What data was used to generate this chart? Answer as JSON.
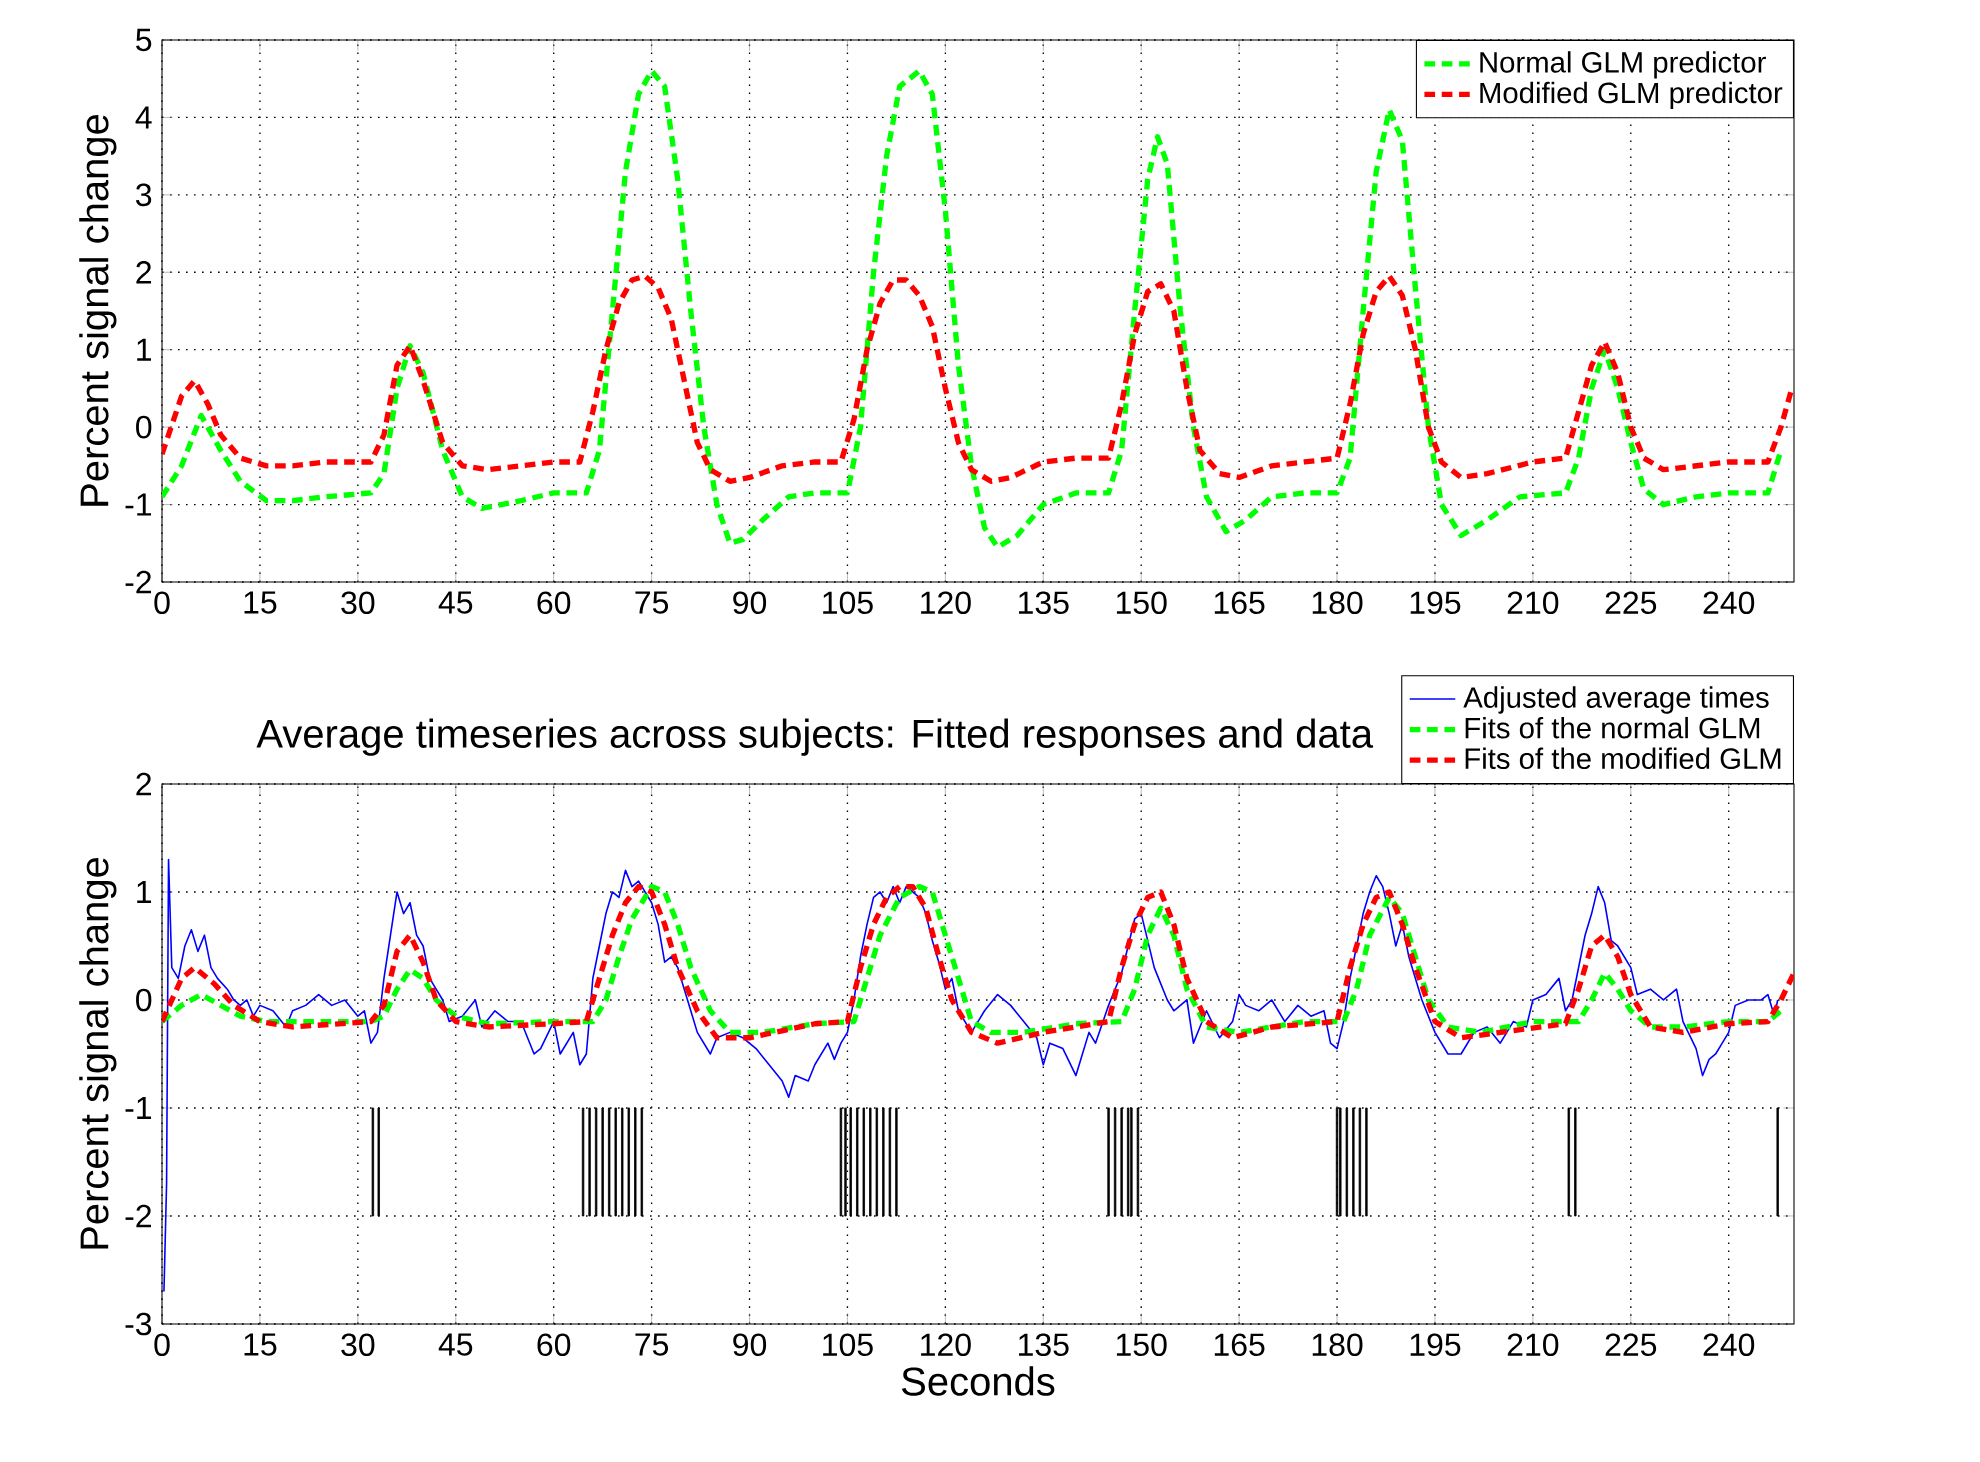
{
  "chart_data": [
    {
      "type": "line",
      "ylabel": "Percent signal change",
      "xlim": [
        0,
        250
      ],
      "ylim": [
        -2,
        5
      ],
      "xticks": [
        0,
        15,
        30,
        45,
        60,
        75,
        90,
        105,
        120,
        135,
        150,
        165,
        180,
        195,
        210,
        225,
        240
      ],
      "yticks": [
        -2,
        -1,
        0,
        1,
        2,
        3,
        4,
        5
      ],
      "grid": true,
      "legend": "top right",
      "series": [
        {
          "name": "Normal GLM predictor",
          "color": "#00ff00",
          "line_style": "dashed",
          "x": [
            0,
            3,
            6,
            9,
            12,
            16,
            20,
            25,
            32,
            34,
            36,
            38,
            40,
            43,
            46,
            49,
            55,
            60,
            65,
            67,
            69,
            71,
            73,
            75,
            77,
            79,
            81,
            83,
            85,
            87,
            89,
            92,
            96,
            100,
            105,
            107,
            109,
            111,
            113,
            116,
            118,
            120,
            122,
            124,
            126,
            128,
            131,
            135,
            140,
            145,
            147,
            149,
            151,
            152.5,
            154,
            156,
            158,
            160,
            163,
            166,
            170,
            175,
            180,
            182,
            184,
            186,
            188,
            190,
            192,
            194,
            196,
            199,
            203,
            208,
            215,
            217,
            219,
            221,
            223,
            225,
            227,
            230,
            235,
            240,
            246,
            248
          ],
          "values": [
            -0.9,
            -0.5,
            0.15,
            -0.3,
            -0.7,
            -0.95,
            -0.95,
            -0.9,
            -0.85,
            -0.6,
            0.5,
            1.05,
            0.7,
            -0.3,
            -0.9,
            -1.05,
            -0.95,
            -0.85,
            -0.85,
            -0.3,
            1.5,
            3.3,
            4.3,
            4.6,
            4.4,
            3.2,
            1.5,
            0.0,
            -1.0,
            -1.5,
            -1.45,
            -1.2,
            -0.9,
            -0.85,
            -0.85,
            0.0,
            2.0,
            3.5,
            4.4,
            4.6,
            4.3,
            2.8,
            0.8,
            -0.5,
            -1.3,
            -1.55,
            -1.4,
            -1.0,
            -0.85,
            -0.85,
            -0.3,
            1.5,
            3.2,
            3.75,
            3.4,
            1.5,
            0.0,
            -0.9,
            -1.35,
            -1.2,
            -0.9,
            -0.85,
            -0.85,
            -0.4,
            1.5,
            3.3,
            4.1,
            3.7,
            1.8,
            0.0,
            -1.0,
            -1.4,
            -1.2,
            -0.9,
            -0.85,
            -0.4,
            0.5,
            1.0,
            0.5,
            -0.2,
            -0.8,
            -1.0,
            -0.9,
            -0.85,
            -0.85,
            -0.3
          ]
        },
        {
          "name": "Modified GLM predictor",
          "color": "#ff0000",
          "line_style": "dashed",
          "x": [
            0,
            3,
            5,
            7,
            9,
            12,
            16,
            20,
            25,
            32,
            34,
            36,
            38,
            40,
            43,
            46,
            50,
            55,
            60,
            64,
            66,
            68,
            70,
            72,
            74,
            76,
            78,
            80,
            82,
            84,
            87,
            90,
            95,
            100,
            104,
            106,
            108,
            110,
            112,
            114,
            116,
            118,
            120,
            122,
            124,
            127,
            130,
            135,
            140,
            145,
            147,
            149,
            151,
            153,
            155,
            157,
            159,
            162,
            165,
            170,
            175,
            180,
            182,
            184,
            186,
            188,
            190,
            192,
            194,
            196,
            199,
            203,
            210,
            215,
            217,
            219,
            221,
            223,
            225,
            227,
            230,
            235,
            240,
            246,
            248,
            249.5
          ],
          "values": [
            -0.35,
            0.4,
            0.6,
            0.3,
            -0.1,
            -0.4,
            -0.5,
            -0.5,
            -0.45,
            -0.45,
            -0.1,
            0.8,
            1.05,
            0.6,
            -0.2,
            -0.5,
            -0.55,
            -0.5,
            -0.45,
            -0.45,
            0.2,
            1.0,
            1.6,
            1.9,
            1.95,
            1.8,
            1.4,
            0.6,
            -0.2,
            -0.55,
            -0.7,
            -0.65,
            -0.5,
            -0.45,
            -0.45,
            0.1,
            1.0,
            1.6,
            1.9,
            1.9,
            1.7,
            1.3,
            0.5,
            -0.2,
            -0.55,
            -0.7,
            -0.65,
            -0.45,
            -0.4,
            -0.4,
            0.3,
            1.2,
            1.75,
            1.85,
            1.5,
            0.5,
            -0.3,
            -0.6,
            -0.65,
            -0.5,
            -0.45,
            -0.4,
            0.3,
            1.2,
            1.75,
            1.95,
            1.7,
            1.0,
            0.0,
            -0.45,
            -0.65,
            -0.6,
            -0.45,
            -0.4,
            0.2,
            0.8,
            1.1,
            0.7,
            0.0,
            -0.4,
            -0.55,
            -0.5,
            -0.45,
            -0.45,
            0.0,
            0.45
          ]
        }
      ]
    },
    {
      "type": "line",
      "title": "Average timeseries across subjects: Fitted responses and data",
      "xlabel": "Seconds",
      "ylabel": "Percent signal change",
      "xlim": [
        0,
        250
      ],
      "ylim": [
        -3,
        2
      ],
      "xticks": [
        0,
        15,
        30,
        45,
        60,
        75,
        90,
        105,
        120,
        135,
        150,
        165,
        180,
        195,
        210,
        225,
        240
      ],
      "yticks": [
        -3,
        -2,
        -1,
        0,
        1,
        2
      ],
      "grid": true,
      "legend": "top right",
      "series": [
        {
          "name": "Adjusted average times",
          "color": "#0000ff",
          "line_style": "solid",
          "x": [
            0.3,
            0.7,
            1,
            1.5,
            2.5,
            3.5,
            4.5,
            5.5,
            6.5,
            7.5,
            8.5,
            10,
            11,
            12,
            13,
            14,
            15,
            17,
            19,
            20,
            22,
            24,
            26,
            28,
            30,
            31,
            32,
            33,
            34,
            35,
            36,
            37,
            38,
            39,
            40,
            41,
            43,
            44,
            46,
            48,
            49,
            51,
            53,
            55,
            57,
            58,
            60,
            61,
            63,
            64,
            65,
            66,
            67,
            68,
            69,
            70,
            71,
            72,
            73,
            74,
            75,
            76,
            77,
            78,
            79,
            80,
            81,
            82,
            84,
            85,
            87,
            89,
            91,
            93,
            95,
            96,
            97,
            99,
            100,
            102,
            103,
            104,
            105,
            106,
            107,
            108,
            109,
            110,
            111,
            112,
            113,
            114,
            115,
            116,
            117,
            118,
            119,
            120,
            121,
            122,
            124,
            126,
            128,
            130,
            132,
            134,
            135,
            136,
            138,
            140,
            142,
            143,
            145,
            147,
            148,
            149,
            150,
            151,
            152,
            154,
            155,
            156,
            157,
            158,
            159,
            160,
            162,
            164,
            165,
            166,
            168,
            170,
            172,
            174,
            176,
            178,
            179,
            180,
            181,
            182,
            183,
            184,
            185,
            186,
            187,
            188,
            189,
            190,
            191,
            192,
            193,
            195,
            197,
            199,
            201,
            203,
            205,
            207,
            209,
            210,
            212,
            214,
            215,
            216,
            218,
            219,
            220,
            221,
            222,
            223,
            225,
            226,
            228,
            230,
            232,
            233,
            235,
            236,
            237,
            238,
            239,
            240,
            241,
            243,
            245,
            246,
            247,
            247.5
          ],
          "values": [
            -2.7,
            -1.7,
            1.3,
            0.3,
            0.2,
            0.5,
            0.65,
            0.45,
            0.6,
            0.3,
            0.2,
            0.1,
            0.0,
            -0.05,
            0.0,
            -0.15,
            -0.05,
            -0.1,
            -0.25,
            -0.1,
            -0.05,
            0.05,
            -0.05,
            0.0,
            -0.15,
            -0.1,
            -0.4,
            -0.3,
            0.2,
            0.6,
            1.0,
            0.8,
            0.9,
            0.6,
            0.5,
            0.2,
            0.0,
            -0.2,
            -0.15,
            0.0,
            -0.25,
            -0.1,
            -0.2,
            -0.2,
            -0.5,
            -0.45,
            -0.2,
            -0.5,
            -0.3,
            -0.6,
            -0.5,
            0.2,
            0.5,
            0.8,
            1.0,
            0.95,
            1.2,
            1.05,
            1.1,
            1.0,
            0.9,
            0.7,
            0.35,
            0.4,
            0.3,
            0.1,
            -0.1,
            -0.3,
            -0.5,
            -0.35,
            -0.3,
            -0.35,
            -0.45,
            -0.6,
            -0.75,
            -0.9,
            -0.7,
            -0.75,
            -0.6,
            -0.4,
            -0.55,
            -0.4,
            -0.3,
            0.0,
            0.4,
            0.7,
            0.95,
            1.0,
            0.9,
            1.05,
            0.9,
            1.05,
            1.0,
            0.95,
            0.8,
            0.55,
            0.35,
            0.1,
            0.2,
            -0.1,
            -0.3,
            -0.1,
            0.05,
            -0.05,
            -0.2,
            -0.35,
            -0.6,
            -0.4,
            -0.45,
            -0.7,
            -0.3,
            -0.4,
            -0.05,
            0.25,
            0.5,
            0.75,
            0.8,
            0.55,
            0.3,
            0.0,
            -0.1,
            -0.05,
            0.0,
            -0.4,
            -0.25,
            -0.1,
            -0.35,
            -0.2,
            0.05,
            -0.05,
            -0.1,
            0.0,
            -0.2,
            -0.05,
            -0.15,
            -0.1,
            -0.4,
            -0.45,
            -0.2,
            0.2,
            0.5,
            0.8,
            1.0,
            1.15,
            1.05,
            0.8,
            0.5,
            0.7,
            0.4,
            0.2,
            0.0,
            -0.3,
            -0.5,
            -0.5,
            -0.3,
            -0.25,
            -0.4,
            -0.2,
            -0.25,
            0.0,
            0.05,
            0.2,
            -0.1,
            0.0,
            0.6,
            0.8,
            1.05,
            0.9,
            0.55,
            0.5,
            0.3,
            0.05,
            0.1,
            0.0,
            0.1,
            -0.2,
            -0.45,
            -0.7,
            -0.55,
            -0.5,
            -0.4,
            -0.3,
            -0.05,
            0.0,
            0.0,
            0.05,
            -0.15,
            0.0
          ]
        },
        {
          "name": "Fits of the normal GLM",
          "color": "#00ff00",
          "line_style": "dashed",
          "x": [
            0,
            3,
            6,
            9,
            12,
            16,
            25,
            32,
            34,
            36,
            38,
            40,
            42,
            45,
            50,
            60,
            66,
            68,
            70,
            72,
            75,
            77,
            79,
            81,
            84,
            87,
            92,
            100,
            106,
            108,
            110,
            113,
            116,
            118,
            120,
            122,
            124,
            127,
            132,
            140,
            147,
            149,
            151,
            153,
            155,
            157,
            160,
            165,
            175,
            181,
            183,
            185,
            188,
            190,
            192,
            194,
            197,
            202,
            210,
            217,
            219,
            221,
            223,
            225,
            228,
            233,
            240,
            246,
            248
          ],
          "values": [
            -0.2,
            -0.05,
            0.05,
            -0.05,
            -0.15,
            -0.2,
            -0.2,
            -0.2,
            -0.15,
            0.1,
            0.28,
            0.2,
            0.0,
            -0.15,
            -0.22,
            -0.2,
            -0.2,
            0.0,
            0.4,
            0.75,
            1.05,
            1.0,
            0.7,
            0.3,
            -0.1,
            -0.3,
            -0.3,
            -0.22,
            -0.2,
            0.2,
            0.6,
            0.95,
            1.05,
            1.0,
            0.6,
            0.2,
            -0.2,
            -0.3,
            -0.3,
            -0.22,
            -0.2,
            0.1,
            0.6,
            0.85,
            0.6,
            0.1,
            -0.25,
            -0.3,
            -0.2,
            -0.2,
            0.1,
            0.6,
            0.95,
            0.8,
            0.4,
            0.0,
            -0.25,
            -0.3,
            -0.2,
            -0.2,
            0.0,
            0.25,
            0.1,
            -0.1,
            -0.25,
            -0.25,
            -0.2,
            -0.2,
            -0.1
          ]
        },
        {
          "name": "Fits of the modified GLM",
          "color": "#ff0000",
          "line_style": "dashed",
          "x": [
            0,
            3,
            5,
            8,
            11,
            15,
            20,
            32,
            34,
            36,
            38,
            40,
            42,
            45,
            50,
            60,
            65,
            67,
            69,
            71,
            73,
            75,
            77,
            79,
            82,
            85,
            90,
            100,
            105,
            107,
            109,
            111,
            113,
            115,
            117,
            119,
            121,
            124,
            128,
            135,
            145,
            147,
            149,
            151,
            153,
            155,
            157,
            160,
            164,
            170,
            180,
            182,
            184,
            186,
            188,
            190,
            192,
            195,
            199,
            205,
            215,
            217,
            219,
            221,
            223,
            225,
            228,
            233,
            240,
            246,
            248,
            250
          ],
          "values": [
            -0.2,
            0.2,
            0.3,
            0.15,
            -0.05,
            -0.2,
            -0.25,
            -0.2,
            -0.05,
            0.45,
            0.6,
            0.35,
            0.0,
            -0.2,
            -0.25,
            -0.22,
            -0.2,
            0.2,
            0.6,
            0.9,
            1.05,
            1.0,
            0.7,
            0.3,
            -0.1,
            -0.35,
            -0.35,
            -0.22,
            -0.2,
            0.3,
            0.7,
            0.95,
            1.05,
            1.05,
            0.85,
            0.4,
            0.0,
            -0.3,
            -0.4,
            -0.3,
            -0.2,
            0.3,
            0.7,
            0.95,
            1.0,
            0.7,
            0.2,
            -0.2,
            -0.35,
            -0.25,
            -0.2,
            0.3,
            0.7,
            0.95,
            1.0,
            0.7,
            0.3,
            -0.2,
            -0.35,
            -0.3,
            -0.22,
            0.1,
            0.5,
            0.6,
            0.4,
            0.05,
            -0.25,
            -0.3,
            -0.22,
            -0.2,
            0.0,
            0.25
          ]
        },
        {
          "type": "bar",
          "color": "#000000",
          "x": [
            32.3,
            33.2,
            64.5,
            65.5,
            66.5,
            67.5,
            68.5,
            69.5,
            70.5,
            71.5,
            72.5,
            73.5,
            104,
            104.7,
            105.5,
            106.5,
            107.5,
            108.5,
            109.5,
            110.5,
            111.5,
            112.5,
            145,
            146,
            147,
            148,
            148.5,
            149.5,
            180,
            180.5,
            181.5,
            182.5,
            183.5,
            184.5,
            215.5,
            216.5,
            247.5
          ],
          "values": [
            1,
            1,
            1,
            1,
            1,
            1,
            1,
            1,
            1,
            1,
            1,
            1,
            1,
            1,
            1,
            1,
            1,
            1,
            1,
            1,
            1,
            1,
            1,
            1,
            1,
            1,
            1,
            1,
            1,
            1,
            1,
            1,
            1,
            1,
            1,
            1,
            1
          ],
          "base": [
            -2,
            -2,
            -2,
            -2,
            -2,
            -2,
            -2,
            -2,
            -2,
            -2,
            -2,
            -2,
            -2,
            -2,
            -2,
            -2,
            -2,
            -2,
            -2,
            -2,
            -2,
            -2,
            -2,
            -2,
            -2,
            -2,
            -2,
            -2,
            -2,
            -2,
            -2,
            -2,
            -2,
            -2,
            -2,
            -2,
            -2
          ]
        }
      ]
    }
  ]
}
